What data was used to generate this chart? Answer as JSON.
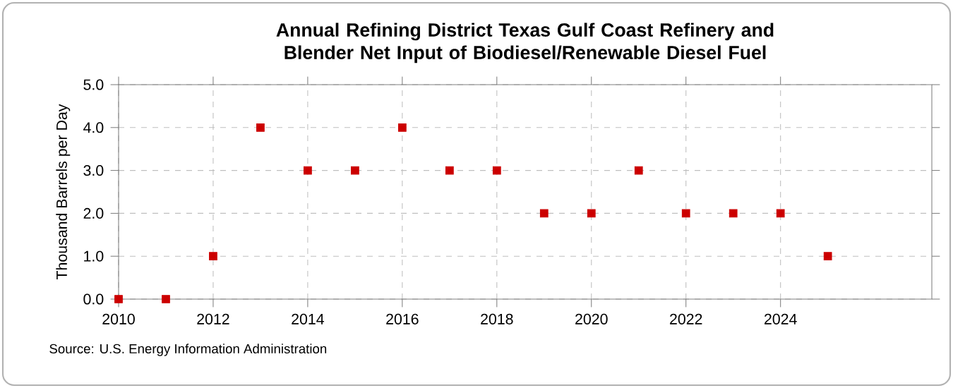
{
  "chart_data": {
    "type": "scatter",
    "title": "Annual Refining District Texas Gulf Coast Refinery and Blender Net Input of Biodiesel/Renewable Diesel Fuel",
    "ylabel": "Thousand Barrels per Day",
    "annotations": [
      "Source: U.S. Energy Information Administration"
    ],
    "x": [
      2010,
      2011,
      2012,
      2013,
      2014,
      2015,
      2016,
      2017,
      2018,
      2019,
      2020,
      2021,
      2022,
      2023,
      2024,
      2025
    ],
    "series": [
      {
        "color": "#cc0000",
        "values": [
          0,
          0,
          1,
          4,
          3,
          3,
          4,
          3,
          3,
          2,
          2,
          3,
          2,
          2,
          2,
          1
        ]
      }
    ],
    "xlim": [
      2010,
      2027.2
    ],
    "xticks": [
      2010,
      2012,
      2014,
      2016,
      2018,
      2020,
      2022,
      2024
    ],
    "ylim": [
      0,
      5
    ],
    "yticks": [
      {
        "value": 0,
        "label": "0.0"
      },
      {
        "value": 1,
        "label": "1.0"
      },
      {
        "value": 2,
        "label": "2.0"
      },
      {
        "value": 3,
        "label": "3.0"
      },
      {
        "value": 4,
        "label": "4.0"
      },
      {
        "value": 5,
        "label": "5.0"
      }
    ],
    "grid": true,
    "marker": "square"
  }
}
